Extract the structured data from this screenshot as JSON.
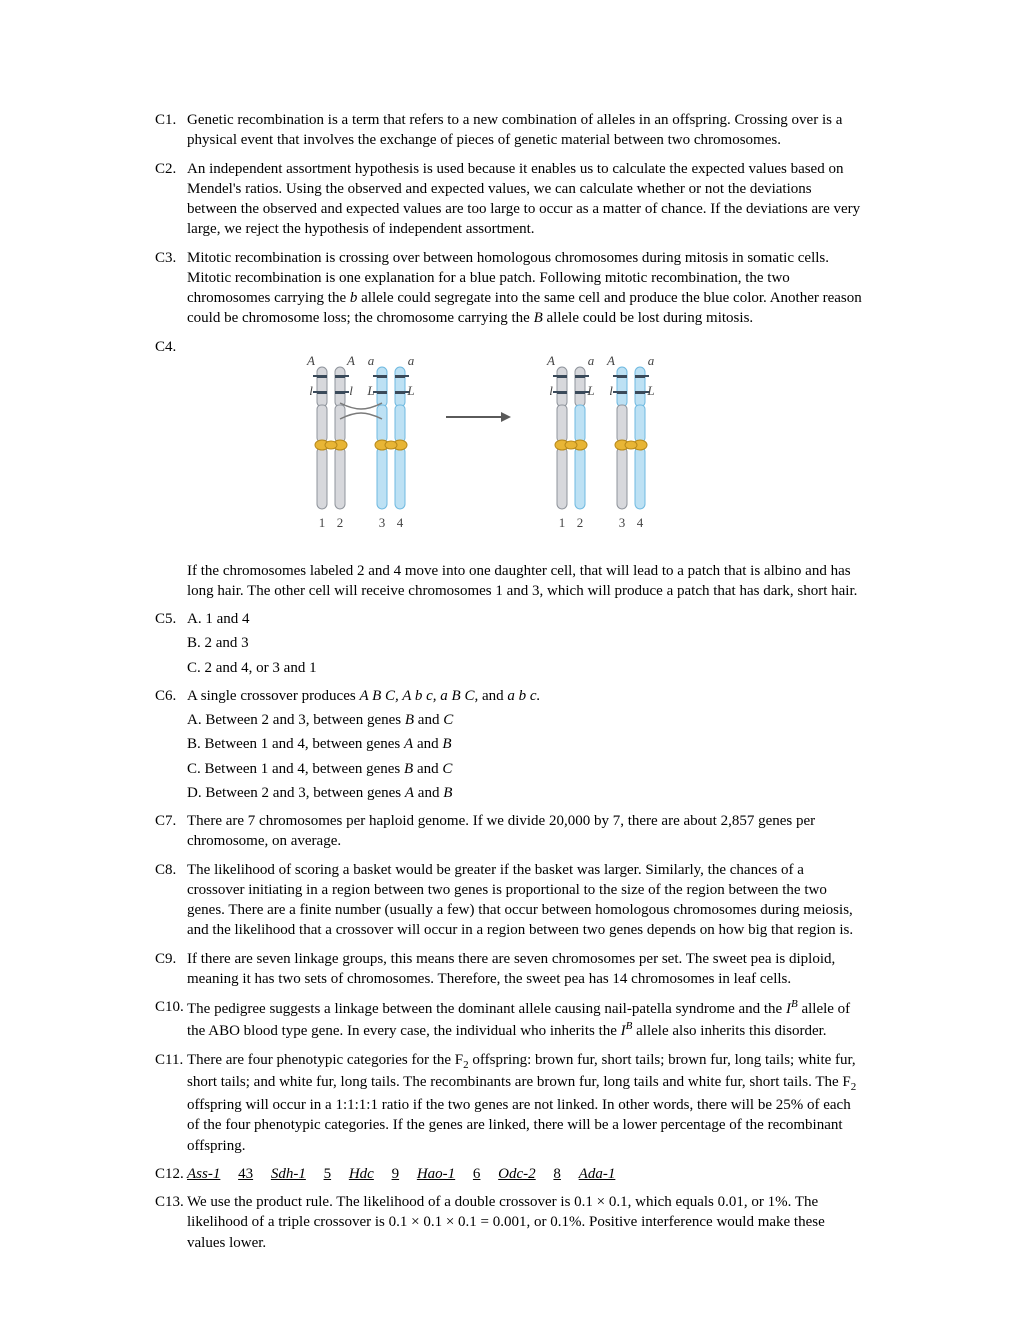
{
  "c1": {
    "label": "C1.",
    "text": "Genetic recombination is a term that refers to a new combination of alleles in an offspring. Crossing over is a physical event that involves the exchange of pieces of genetic material between two chromosomes."
  },
  "c2": {
    "label": "C2.",
    "text": "An independent assortment hypothesis is used because it enables us to calculate the expected values based on Mendel's ratios. Using the observed and expected values, we can calculate whether or not the deviations between the observed and expected values are too large to occur as a matter of chance. If the deviations are very large, we reject the hypothesis of independent assortment."
  },
  "c3": {
    "label": "C3.",
    "pre": "Mitotic recombination is crossing over between homologous chromosomes during mitosis in somatic cells. Mitotic recombination is one explanation for a blue patch. Following mitotic recombination, the two chromosomes carrying the ",
    "b_ital": "b",
    "mid": " allele could segregate into the same cell and produce the blue color. Another reason could be chromosome loss; the chromosome carrying the ",
    "B_ital": "B",
    "post": " allele could be lost during mitosis."
  },
  "c4": {
    "label": "C4.",
    "caption": "If the chromosomes labeled 2 and 4 move into one daughter cell, that will lead to a patch that is albino and has long hair. The other cell will receive chromosomes 1 and 3, which will produce a patch that has dark, short hair.",
    "diagram": {
      "grey_fill": "#d7d8dc",
      "grey_stroke": "#8f949c",
      "blue_fill": "#bde1f4",
      "blue_stroke": "#6fb9e0",
      "band_color": "#3a4a5a",
      "cent_fill": "#e8b535",
      "cent_stroke": "#b8891a",
      "cross_color": "#7a7a7a",
      "arrow_color": "#5a5a5a",
      "text_color": "#444",
      "label_font": "italic 13px 'Times New Roman'",
      "num_font": "13px 'Times New Roman'",
      "left_labels": [
        [
          "A",
          "A"
        ],
        [
          "a",
          "a"
        ]
      ],
      "right_labels": [
        [
          "A",
          "a"
        ],
        [
          "A",
          "a"
        ]
      ],
      "left_lower": [
        [
          "l",
          "l"
        ],
        [
          "L",
          "L"
        ]
      ],
      "right_lower": [
        [
          "l",
          "L"
        ],
        [
          "l",
          "L"
        ]
      ],
      "nums": [
        "1",
        "2",
        "3",
        "4"
      ]
    }
  },
  "c5": {
    "label": "C5.",
    "a": "A. 1 and 4",
    "b": "B. 2 and 3",
    "c": "C. 2 and 4, or 3 and 1"
  },
  "c6": {
    "label": "C6.",
    "intro_pre": "A single crossover produces ",
    "intro_ital": "A B C, A b c, a B C,",
    "intro_mid": " and ",
    "intro_ital2": "a b c.",
    "a_pre": "A. Between 2 and 3, between genes ",
    "a_g1": "B",
    "a_mid": " and ",
    "a_g2": "C",
    "b_pre": "B. Between 1 and 4, between genes ",
    "b_g1": "A",
    "b_mid": " and ",
    "b_g2": "B",
    "c_pre": "C. Between 1 and 4, between genes ",
    "c_g1": "B",
    "c_mid": " and ",
    "c_g2": "C",
    "d_pre": "D. Between 2 and 3, between genes ",
    "d_g1": "A",
    "d_mid": " and ",
    "d_g2": "B"
  },
  "c7": {
    "label": "C7.",
    "text": "There are 7 chromosomes per haploid genome. If we divide 20,000 by 7, there are about 2,857 genes per chromosome, on average."
  },
  "c8": {
    "label": "C8.",
    "text": "The likelihood of scoring a basket would be greater if the basket was larger. Similarly, the chances of a crossover initiating in a region between two genes is proportional to the size of the region between the two genes. There are a finite number (usually a few) that occur between homologous chromosomes during meiosis, and the likelihood that a crossover will occur in a region between two genes depends on how big that region is."
  },
  "c9": {
    "label": "C9.",
    "text": "If there are seven linkage groups, this means there are seven chromosomes per set. The sweet pea is diploid, meaning it has two sets of chromosomes. Therefore, the sweet pea has 14 chromosomes in leaf cells."
  },
  "c10": {
    "label": "C10.",
    "pre": "The pedigree suggests a linkage between the dominant allele causing nail-patella syndrome and the ",
    "I1": "I",
    "B1": "B",
    "mid": " allele of the ABO blood type gene. In every case, the individual who inherits the ",
    "I2": "I",
    "B2": "B",
    "post": " allele also inherits this disorder."
  },
  "c11": {
    "label": "C11.",
    "pre": "There are four phenotypic categories for the F",
    "sub1": "2",
    "mid1": " offspring: brown fur, short tails; brown fur, long tails; white fur, short tails; and white fur, long tails. The recombinants are brown fur, long tails and white fur, short tails. The F",
    "sub2": "2",
    "mid2": " offspring will occur in a 1:1:1:1 ratio if the two genes are not linked. In other words, there will be 25% of each of the four phenotypic categories. If the genes are linked, there will be a lower percentage of the recombinant offspring."
  },
  "c12": {
    "label": "C12.",
    "g1": "Ass-1",
    "d1": "43",
    "g2": "Sdh-1",
    "d2": "5",
    "g3": "Hdc",
    "d3": "9",
    "g4": "Hao-1",
    "d4": "6",
    "g5": "Odc-2",
    "d5": "8",
    "g6": "Ada-1"
  },
  "c13": {
    "label": "C13.",
    "text": "We use the product rule. The likelihood of a double crossover is 0.1 × 0.1, which equals 0.01, or 1%. The likelihood of a triple crossover is 0.1 × 0.1 × 0.1 = 0.001, or 0.1%. Positive interference would make these values lower."
  }
}
